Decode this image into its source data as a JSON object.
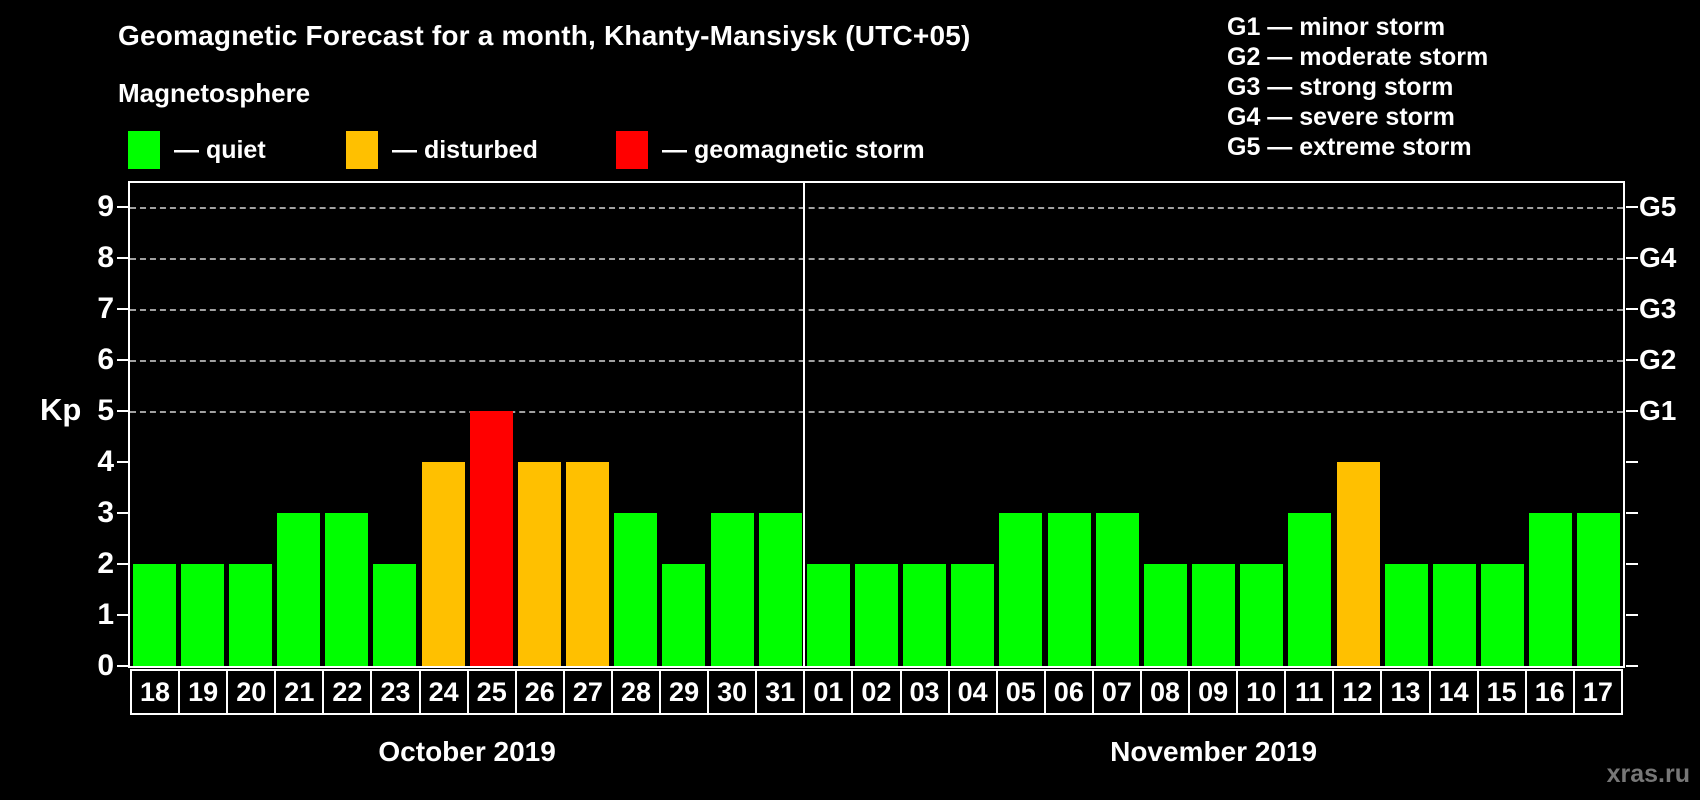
{
  "title": "Geomagnetic Forecast for a month, Khanty-Mansiysk (UTC+05)",
  "subtitle": "Magnetosphere",
  "legend": [
    {
      "label": "— quiet",
      "status": "quiet",
      "color": "#00ff00"
    },
    {
      "label": "— disturbed",
      "status": "disturbed",
      "color": "#ffc000"
    },
    {
      "label": "— geomagnetic storm",
      "status": "storm",
      "color": "#ff0000"
    }
  ],
  "g_legend": [
    "G1 — minor storm",
    "G2 — moderate storm",
    "G3 — strong storm",
    "G4 — severe storm",
    "G5 — extreme storm"
  ],
  "watermark": "xras.ru",
  "chart_data": {
    "type": "bar",
    "title": "Geomagnetic Forecast for a month, Khanty-Mansiysk (UTC+05)",
    "xlabel": "",
    "ylabel": "Kp",
    "ylim": [
      0,
      9.5
    ],
    "yticks": [
      0,
      1,
      2,
      3,
      4,
      5,
      6,
      7,
      8,
      9
    ],
    "gridlines": [
      5,
      6,
      7,
      8,
      9
    ],
    "grid": "dashed horizontal at storm levels only",
    "legend_position": "top",
    "right_axis": [
      {
        "label": "G1",
        "kp": 5
      },
      {
        "label": "G2",
        "kp": 6
      },
      {
        "label": "G3",
        "kp": 7
      },
      {
        "label": "G4",
        "kp": 8
      },
      {
        "label": "G5",
        "kp": 9
      }
    ],
    "colors": {
      "quiet": "#00ff00",
      "disturbed": "#ffc000",
      "storm": "#ff0000"
    },
    "months": [
      {
        "label": "October 2019",
        "count": 14
      },
      {
        "label": "November 2019",
        "count": 17
      }
    ],
    "categories": [
      "18",
      "19",
      "20",
      "21",
      "22",
      "23",
      "24",
      "25",
      "26",
      "27",
      "28",
      "29",
      "30",
      "31",
      "01",
      "02",
      "03",
      "04",
      "05",
      "06",
      "07",
      "08",
      "09",
      "10",
      "11",
      "12",
      "13",
      "14",
      "15",
      "16",
      "17"
    ],
    "values": [
      2,
      2,
      2,
      3,
      3,
      2,
      4,
      5,
      4,
      4,
      3,
      2,
      3,
      3,
      2,
      2,
      2,
      2,
      3,
      3,
      3,
      2,
      2,
      2,
      3,
      4,
      2,
      2,
      2,
      3,
      3
    ],
    "statuses": [
      "quiet",
      "quiet",
      "quiet",
      "quiet",
      "quiet",
      "quiet",
      "disturbed",
      "storm",
      "disturbed",
      "disturbed",
      "quiet",
      "quiet",
      "quiet",
      "quiet",
      "quiet",
      "quiet",
      "quiet",
      "quiet",
      "quiet",
      "quiet",
      "quiet",
      "quiet",
      "quiet",
      "quiet",
      "quiet",
      "disturbed",
      "quiet",
      "quiet",
      "quiet",
      "quiet",
      "quiet"
    ]
  }
}
